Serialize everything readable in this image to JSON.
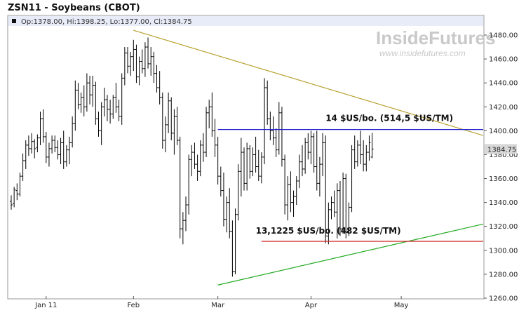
{
  "header": {
    "title": "ZSN11 - Soybeans (CBOT)",
    "ohlc_info": "Op:1378.00, Hi:1398.25, Lo:1377.00, Cl:1384.75"
  },
  "watermark": {
    "brand": "InsideFutures",
    "url": "www.insidefutures.com"
  },
  "colors": {
    "bars": "#000000",
    "resistance_trend": "#b8a030",
    "support_trend": "#22aa22",
    "resistance_level": "#2222cc",
    "support_level": "#cc2222",
    "last_price_box": "#d8d8d8",
    "info_bar": "#e8ecf8"
  },
  "chart_data": {
    "type": "ohlc",
    "title": "ZSN11 - Soybeans (CBOT)",
    "ylim": [
      1260,
      1490
    ],
    "y_ticks": [
      "1480.00",
      "1460.00",
      "1440.00",
      "1420.00",
      "1400.00",
      "1380.00",
      "1360.00",
      "1340.00",
      "1320.00",
      "1300.00",
      "1280.00",
      "1260.00"
    ],
    "y_tick_values": [
      1480,
      1460,
      1440,
      1420,
      1400,
      1380,
      1360,
      1340,
      1320,
      1300,
      1280,
      1260
    ],
    "x_ticks": [
      "Jan 11",
      "Feb",
      "Mar",
      "Apr",
      "May"
    ],
    "x_tick_index": [
      12,
      42,
      71,
      103,
      134
    ],
    "last_price": "1384.75",
    "last_price_value": 1384.75,
    "bars": [
      [
        1341,
        1346,
        1334,
        1338
      ],
      [
        1339,
        1353,
        1336,
        1351
      ],
      [
        1350,
        1356,
        1342,
        1347
      ],
      [
        1347,
        1365,
        1345,
        1362
      ],
      [
        1362,
        1381,
        1358,
        1375
      ],
      [
        1375,
        1392,
        1368,
        1388
      ],
      [
        1388,
        1396,
        1379,
        1385
      ],
      [
        1385,
        1398,
        1381,
        1391
      ],
      [
        1391,
        1393,
        1377,
        1385
      ],
      [
        1386,
        1397,
        1382,
        1394
      ],
      [
        1394,
        1416,
        1388,
        1410
      ],
      [
        1410,
        1418,
        1390,
        1395
      ],
      [
        1395,
        1399,
        1373,
        1378
      ],
      [
        1378,
        1390,
        1370,
        1385
      ],
      [
        1385,
        1396,
        1381,
        1392
      ],
      [
        1392,
        1396,
        1382,
        1386
      ],
      [
        1386,
        1392,
        1376,
        1380
      ],
      [
        1380,
        1394,
        1372,
        1390
      ],
      [
        1390,
        1400,
        1368,
        1374
      ],
      [
        1374,
        1388,
        1370,
        1384
      ],
      [
        1384,
        1395,
        1372,
        1390
      ],
      [
        1390,
        1412,
        1386,
        1406
      ],
      [
        1406,
        1442,
        1400,
        1434
      ],
      [
        1434,
        1440,
        1418,
        1422
      ],
      [
        1422,
        1432,
        1415,
        1428
      ],
      [
        1428,
        1438,
        1412,
        1420
      ],
      [
        1420,
        1448,
        1416,
        1440
      ],
      [
        1440,
        1446,
        1422,
        1430
      ],
      [
        1430,
        1446,
        1420,
        1438
      ],
      [
        1438,
        1441,
        1405,
        1410
      ],
      [
        1410,
        1416,
        1395,
        1400
      ],
      [
        1400,
        1424,
        1388,
        1420
      ],
      [
        1420,
        1436,
        1412,
        1426
      ],
      [
        1426,
        1430,
        1408,
        1418
      ],
      [
        1418,
        1426,
        1406,
        1414
      ],
      [
        1414,
        1430,
        1410,
        1428
      ],
      [
        1428,
        1440,
        1415,
        1420
      ],
      [
        1420,
        1426,
        1408,
        1412
      ],
      [
        1412,
        1448,
        1405,
        1444
      ],
      [
        1444,
        1470,
        1438,
        1465
      ],
      [
        1465,
        1470,
        1448,
        1454
      ],
      [
        1454,
        1466,
        1446,
        1462
      ],
      [
        1462,
        1476,
        1450,
        1468
      ],
      [
        1468,
        1472,
        1440,
        1445
      ],
      [
        1445,
        1462,
        1438,
        1458
      ],
      [
        1458,
        1468,
        1448,
        1452
      ],
      [
        1452,
        1474,
        1445,
        1470
      ],
      [
        1470,
        1478,
        1452,
        1456
      ],
      [
        1456,
        1470,
        1446,
        1462
      ],
      [
        1462,
        1466,
        1440,
        1448
      ],
      [
        1448,
        1455,
        1432,
        1436
      ],
      [
        1436,
        1450,
        1422,
        1428
      ],
      [
        1428,
        1432,
        1385,
        1392
      ],
      [
        1392,
        1412,
        1382,
        1405
      ],
      [
        1405,
        1432,
        1398,
        1425
      ],
      [
        1425,
        1428,
        1392,
        1398
      ],
      [
        1398,
        1418,
        1380,
        1412
      ],
      [
        1412,
        1420,
        1388,
        1392
      ],
      [
        1392,
        1395,
        1310,
        1318
      ],
      [
        1318,
        1332,
        1305,
        1325
      ],
      [
        1325,
        1345,
        1316,
        1338
      ],
      [
        1338,
        1380,
        1330,
        1376
      ],
      [
        1376,
        1388,
        1362,
        1382
      ],
      [
        1382,
        1390,
        1368,
        1372
      ],
      [
        1372,
        1380,
        1358,
        1366
      ],
      [
        1366,
        1392,
        1362,
        1388
      ],
      [
        1388,
        1398,
        1374,
        1382
      ],
      [
        1382,
        1420,
        1378,
        1415
      ],
      [
        1415,
        1426,
        1402,
        1420
      ],
      [
        1420,
        1432,
        1395,
        1400
      ],
      [
        1400,
        1410,
        1378,
        1388
      ],
      [
        1388,
        1395,
        1355,
        1362
      ],
      [
        1362,
        1370,
        1345,
        1350
      ],
      [
        1350,
        1365,
        1320,
        1326
      ],
      [
        1326,
        1345,
        1315,
        1340
      ],
      [
        1340,
        1352,
        1310,
        1316
      ],
      [
        1316,
        1325,
        1278,
        1282
      ],
      [
        1282,
        1335,
        1280,
        1330
      ],
      [
        1330,
        1372,
        1325,
        1366
      ],
      [
        1366,
        1394,
        1345,
        1382
      ],
      [
        1382,
        1386,
        1350,
        1356
      ],
      [
        1356,
        1390,
        1350,
        1385
      ],
      [
        1385,
        1388,
        1360,
        1366
      ],
      [
        1366,
        1386,
        1362,
        1380
      ],
      [
        1380,
        1395,
        1365,
        1370
      ],
      [
        1370,
        1384,
        1358,
        1362
      ],
      [
        1362,
        1382,
        1356,
        1378
      ],
      [
        1378,
        1444,
        1372,
        1436
      ],
      [
        1436,
        1442,
        1405,
        1410
      ],
      [
        1410,
        1416,
        1392,
        1400
      ],
      [
        1400,
        1412,
        1388,
        1394
      ],
      [
        1394,
        1402,
        1378,
        1384
      ],
      [
        1384,
        1424,
        1380,
        1415
      ],
      [
        1415,
        1420,
        1370,
        1376
      ],
      [
        1376,
        1380,
        1330,
        1338
      ],
      [
        1338,
        1362,
        1325,
        1355
      ],
      [
        1355,
        1366,
        1332,
        1340
      ],
      [
        1340,
        1350,
        1328,
        1345
      ],
      [
        1345,
        1362,
        1338,
        1358
      ],
      [
        1358,
        1380,
        1352,
        1374
      ],
      [
        1374,
        1388,
        1362,
        1368
      ],
      [
        1368,
        1394,
        1364,
        1390
      ],
      [
        1390,
        1398,
        1376,
        1382
      ],
      [
        1382,
        1400,
        1372,
        1395
      ],
      [
        1395,
        1398,
        1365,
        1370
      ],
      [
        1370,
        1400,
        1350,
        1356
      ],
      [
        1356,
        1378,
        1345,
        1372
      ],
      [
        1372,
        1398,
        1362,
        1390
      ],
      [
        1390,
        1396,
        1306,
        1312
      ],
      [
        1312,
        1340,
        1305,
        1334
      ],
      [
        1334,
        1345,
        1326,
        1340
      ],
      [
        1340,
        1350,
        1328,
        1332
      ],
      [
        1332,
        1356,
        1310,
        1350
      ],
      [
        1350,
        1358,
        1312,
        1318
      ],
      [
        1318,
        1365,
        1314,
        1360
      ],
      [
        1360,
        1364,
        1310,
        1315
      ],
      [
        1315,
        1340,
        1312,
        1336
      ],
      [
        1336,
        1388,
        1332,
        1384
      ],
      [
        1384,
        1396,
        1368,
        1374
      ],
      [
        1374,
        1392,
        1370,
        1388
      ],
      [
        1388,
        1400,
        1372,
        1380
      ],
      [
        1380,
        1392,
        1366,
        1372
      ],
      [
        1372,
        1388,
        1366,
        1382
      ],
      [
        1382,
        1396,
        1375,
        1390
      ],
      [
        1378,
        1398.25,
        1377,
        1384.75
      ]
    ],
    "lines": [
      {
        "kind": "trendline",
        "points": [
          [
            42,
            1484
          ],
          [
            168,
            1396
          ]
        ]
      },
      {
        "kind": "trendline",
        "points": [
          [
            71,
            1271
          ],
          [
            168,
            1322
          ]
        ]
      },
      {
        "kind": "horizontal",
        "y": 1401,
        "x_range": [
          71,
          168
        ]
      },
      {
        "kind": "horizontal",
        "y": 1307.5,
        "x_range": [
          86,
          168
        ]
      }
    ],
    "annotations": [
      {
        "text": "14 $US/bo. (514,5 $US/TM)",
        "x": 108,
        "y": 1408
      },
      {
        "text": "13,1225 $US/bo. (482 $US/TM)",
        "x": 84,
        "y": 1314
      }
    ]
  }
}
